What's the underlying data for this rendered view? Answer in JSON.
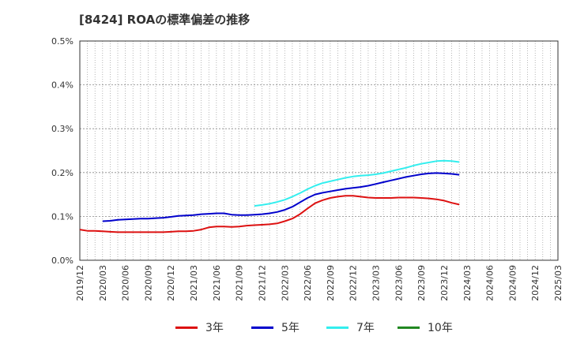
{
  "title": "[8424]  ROAの標準偏差の推移",
  "chart_data": {
    "type": "line",
    "title": "[8424]  ROAの標準偏差の推移",
    "xlabel": "",
    "ylabel": "",
    "ylim": [
      0,
      0.5
    ],
    "y_ticks": [
      "0.0%",
      "0.1%",
      "0.2%",
      "0.3%",
      "0.4%",
      "0.5%"
    ],
    "x_ticks": [
      "2019/12",
      "2020/03",
      "2020/06",
      "2020/09",
      "2020/12",
      "2021/03",
      "2021/06",
      "2021/09",
      "2021/12",
      "2022/03",
      "2022/06",
      "2022/09",
      "2022/12",
      "2023/03",
      "2023/06",
      "2023/09",
      "2023/12",
      "2024/03",
      "2024/06",
      "2024/09",
      "2024/12",
      "2025/03"
    ],
    "grid": true,
    "legend_position": "bottom",
    "x_start": "2019/12",
    "series": [
      {
        "name": "3年",
        "color": "#dd1111",
        "values": [
          0.07,
          0.067,
          0.067,
          0.066,
          0.065,
          0.064,
          0.064,
          0.064,
          0.064,
          0.064,
          0.064,
          0.064,
          0.065,
          0.066,
          0.066,
          0.067,
          0.07,
          0.075,
          0.077,
          0.077,
          0.076,
          0.077,
          0.079,
          0.08,
          0.081,
          0.082,
          0.084,
          0.089,
          0.095,
          0.105,
          0.118,
          0.13,
          0.137,
          0.142,
          0.145,
          0.147,
          0.147,
          0.145,
          0.143,
          0.142,
          0.142,
          0.142,
          0.143,
          0.143,
          0.143,
          0.142,
          0.141,
          0.139,
          0.136,
          0.131,
          0.127
        ]
      },
      {
        "name": "5年",
        "color": "#0000cc",
        "values": [
          null,
          null,
          null,
          0.089,
          0.09,
          0.092,
          0.093,
          0.094,
          0.095,
          0.095,
          0.096,
          0.097,
          0.099,
          0.101,
          0.102,
          0.103,
          0.105,
          0.106,
          0.107,
          0.107,
          0.104,
          0.103,
          0.103,
          0.104,
          0.105,
          0.107,
          0.11,
          0.115,
          0.122,
          0.132,
          0.142,
          0.15,
          0.154,
          0.157,
          0.16,
          0.163,
          0.165,
          0.167,
          0.17,
          0.174,
          0.178,
          0.182,
          0.186,
          0.19,
          0.193,
          0.196,
          0.198,
          0.199,
          0.198,
          0.197,
          0.195
        ]
      },
      {
        "name": "7年",
        "color": "#33eeee",
        "values": [
          null,
          null,
          null,
          null,
          null,
          null,
          null,
          null,
          null,
          null,
          null,
          null,
          null,
          null,
          null,
          null,
          null,
          null,
          null,
          null,
          null,
          null,
          null,
          0.124,
          0.126,
          0.129,
          0.133,
          0.138,
          0.145,
          0.153,
          0.162,
          0.17,
          0.176,
          0.18,
          0.184,
          0.188,
          0.191,
          0.193,
          0.194,
          0.196,
          0.199,
          0.203,
          0.207,
          0.211,
          0.216,
          0.22,
          0.223,
          0.226,
          0.227,
          0.226,
          0.224
        ]
      },
      {
        "name": "10年",
        "color": "#228822",
        "values": []
      }
    ]
  }
}
